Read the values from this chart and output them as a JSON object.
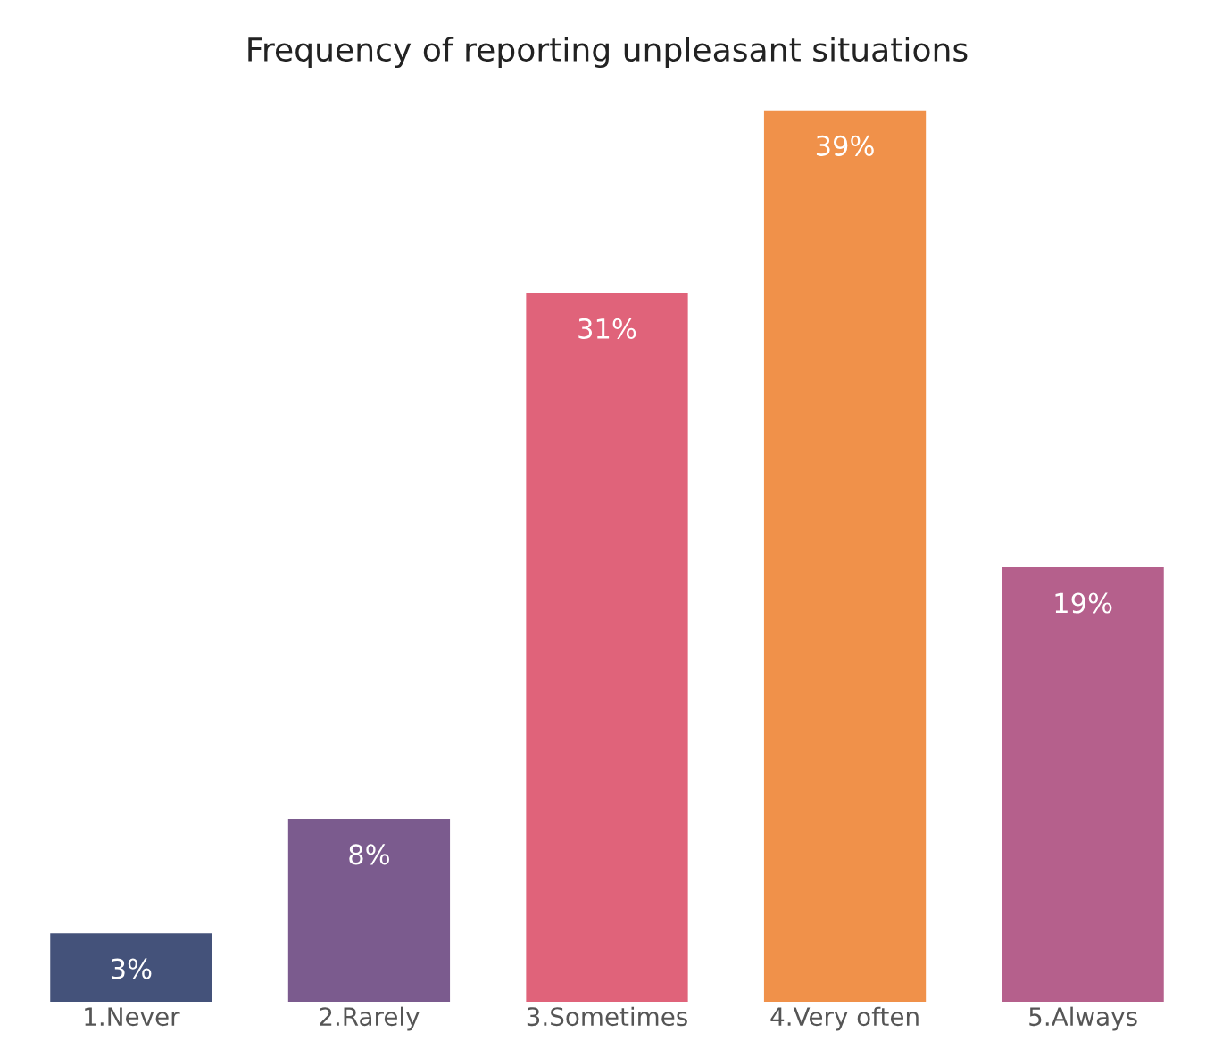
{
  "chart_data": {
    "type": "bar",
    "title": "Frequency of reporting unpleasant situations",
    "categories": [
      "1.Never",
      "2.Rarely",
      "3.Sometimes",
      "4.Very often",
      "5.Always"
    ],
    "values": [
      3,
      8,
      31,
      39,
      19
    ],
    "value_labels": [
      "3%",
      "8%",
      "31%",
      "39%",
      "19%"
    ],
    "colors": [
      "#44527a",
      "#7b5b8e",
      "#e0637a",
      "#f0914a",
      "#b5608c"
    ],
    "grid": false,
    "legend": false
  }
}
